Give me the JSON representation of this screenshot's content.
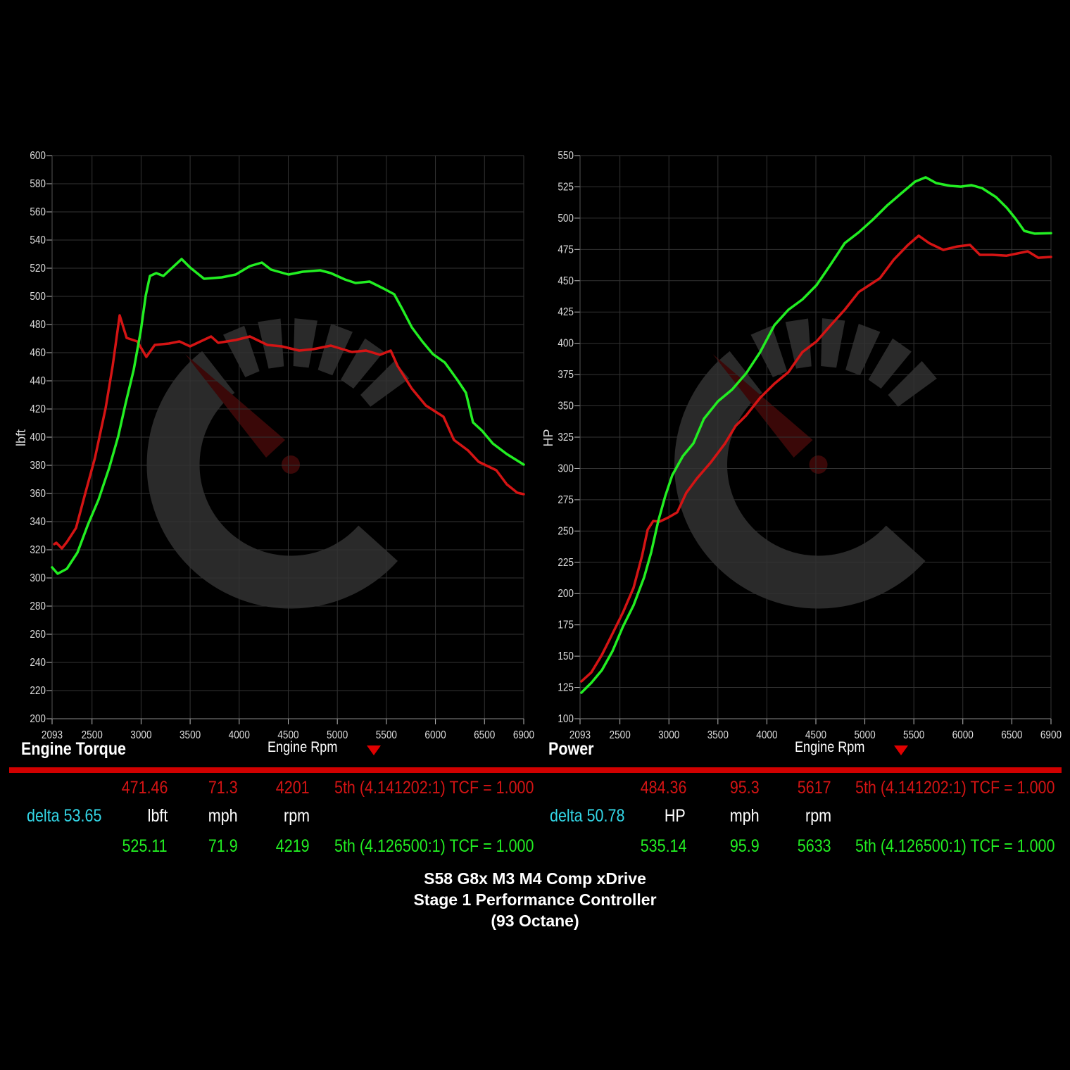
{
  "colors": {
    "baseline": "#d41414",
    "tuned": "#22ee22",
    "delta": "#33d6e6",
    "bar": "#d10000",
    "grid": "#333333",
    "watermark": "#2a2a2a"
  },
  "chart_data": [
    {
      "type": "line",
      "title": "Engine Torque",
      "xlabel": "Engine Rpm",
      "ylabel": "lbft",
      "xlim": [
        2093,
        6900
      ],
      "ylim": [
        200,
        600
      ],
      "xticks": [
        2093,
        2500,
        3000,
        3500,
        4000,
        4500,
        5000,
        5500,
        6000,
        6500,
        6900
      ],
      "yticks": [
        200,
        220,
        240,
        260,
        280,
        300,
        320,
        340,
        360,
        380,
        400,
        420,
        440,
        460,
        480,
        500,
        520,
        540,
        560,
        580,
        600
      ],
      "grid": true,
      "series": [
        {
          "color": "#d41414",
          "x": [
            2115,
            2136,
            2193,
            2244,
            2337,
            2423,
            2531,
            2638,
            2710,
            2782,
            2853,
            2961,
            3054,
            3140,
            3284,
            3391,
            3499,
            3714,
            3786,
            3965,
            4109,
            4288,
            4432,
            4611,
            4755,
            4934,
            5149,
            5293,
            5436,
            5544,
            5615,
            5759,
            5902,
            6082,
            6189,
            6333,
            6440,
            6620,
            6727,
            6835,
            6900
          ],
          "y": [
            324,
            325,
            321,
            325.5,
            335.5,
            358,
            385.5,
            420.5,
            450.5,
            486.5,
            470.5,
            468,
            457,
            465.5,
            466.5,
            468,
            464.5,
            471.5,
            467,
            469,
            471.5,
            465.5,
            464.5,
            461.5,
            462.5,
            465,
            460.5,
            461.5,
            458.5,
            461.5,
            450.5,
            434.5,
            422.5,
            414.5,
            398,
            390.5,
            382.5,
            376.5,
            366.5,
            360.5,
            359.5
          ]
        },
        {
          "color": "#22ee22",
          "x": [
            2093,
            2150,
            2244,
            2351,
            2459,
            2566,
            2674,
            2767,
            2839,
            2925,
            2997,
            3047,
            3090,
            3155,
            3227,
            3320,
            3413,
            3499,
            3642,
            3822,
            3965,
            4109,
            4231,
            4324,
            4503,
            4647,
            4826,
            4934,
            5077,
            5185,
            5329,
            5472,
            5580,
            5666,
            5759,
            5866,
            5974,
            6096,
            6225,
            6311,
            6383,
            6476,
            6584,
            6727,
            6900
          ],
          "y": [
            307.5,
            303,
            306.5,
            318,
            338,
            355.5,
            378,
            400.5,
            423,
            448,
            475.5,
            500.5,
            514.5,
            516.5,
            514.5,
            520.5,
            526.5,
            520.5,
            512.5,
            513.5,
            515.5,
            521.5,
            524,
            519,
            515.5,
            517.5,
            518.5,
            516.5,
            512,
            509.5,
            510.5,
            505.5,
            501.5,
            490.5,
            478,
            468,
            459,
            453,
            440.5,
            431.5,
            410.5,
            404.5,
            395.5,
            388,
            380.5
          ]
        }
      ]
    },
    {
      "type": "line",
      "title": "Power",
      "xlabel": "Engine Rpm",
      "ylabel": "HP",
      "xlim": [
        2093,
        6900
      ],
      "ylim": [
        100,
        550
      ],
      "xticks": [
        2093,
        2500,
        3000,
        3500,
        4000,
        4500,
        5000,
        5500,
        6000,
        6500,
        6900
      ],
      "yticks": [
        100,
        125,
        150,
        175,
        200,
        225,
        250,
        275,
        300,
        325,
        350,
        375,
        400,
        425,
        450,
        475,
        500,
        525,
        550
      ],
      "grid": true,
      "series": [
        {
          "color": "#d41414",
          "x": [
            2107,
            2208,
            2316,
            2424,
            2531,
            2639,
            2725,
            2783,
            2840,
            2905,
            2998,
            3085,
            3178,
            3286,
            3429,
            3573,
            3681,
            3789,
            3932,
            4076,
            4220,
            4363,
            4507,
            4651,
            4795,
            4938,
            5046,
            5154,
            5297,
            5441,
            5549,
            5657,
            5801,
            5944,
            6073,
            6174,
            6303,
            6447,
            6663,
            6770,
            6900
          ],
          "y": [
            129.8,
            137,
            151,
            168,
            185,
            204.6,
            230,
            251,
            258,
            257.5,
            261,
            265,
            280.6,
            292,
            305,
            320,
            334,
            342.4,
            356.5,
            367.7,
            377,
            393,
            401.5,
            414.4,
            426.8,
            441,
            446.5,
            452,
            467,
            478.6,
            486,
            480,
            474.6,
            477.4,
            478.6,
            470.7,
            470.7,
            470,
            473.5,
            468.4,
            469
          ]
        },
        {
          "color": "#22ee22",
          "x": [
            2107,
            2208,
            2316,
            2424,
            2531,
            2639,
            2747,
            2819,
            2891,
            2962,
            3034,
            3142,
            3250,
            3357,
            3501,
            3645,
            3789,
            3932,
            4076,
            4220,
            4363,
            4507,
            4651,
            4795,
            4938,
            5082,
            5226,
            5369,
            5513,
            5621,
            5729,
            5873,
            5980,
            6088,
            6196,
            6339,
            6447,
            6534,
            6627,
            6735,
            6900
          ],
          "y": [
            120.8,
            128.7,
            138.8,
            154,
            173.7,
            190.6,
            213,
            232.8,
            258,
            277.7,
            294.6,
            309.8,
            320,
            339.6,
            353.7,
            363,
            376,
            393,
            414.4,
            426.8,
            435,
            446.5,
            463,
            480,
            488.7,
            498.8,
            510,
            519.6,
            529.2,
            532.6,
            528,
            525.8,
            525.2,
            526.4,
            524,
            516.8,
            508.4,
            500,
            489.8,
            487.6,
            488
          ]
        }
      ]
    }
  ],
  "torque_table": {
    "baseline": {
      "value": "471.46",
      "mph": "71.3",
      "rpm": "4201",
      "gear": "5th (4.141202:1) TCF = 1.000"
    },
    "delta": "delta 53.65",
    "units": {
      "value": "lbft",
      "mph": "mph",
      "rpm": "rpm"
    },
    "tuned": {
      "value": "525.11",
      "mph": "71.9",
      "rpm": "4219",
      "gear": "5th (4.126500:1) TCF = 1.000"
    }
  },
  "power_table": {
    "baseline": {
      "value": "484.36",
      "mph": "95.3",
      "rpm": "5617",
      "gear": "5th (4.141202:1) TCF = 1.000"
    },
    "delta": "delta 50.78",
    "units": {
      "value": "HP",
      "mph": "mph",
      "rpm": "rpm"
    },
    "tuned": {
      "value": "535.14",
      "mph": "95.9",
      "rpm": "5633",
      "gear": "5th (4.126500:1) TCF = 1.000"
    }
  },
  "caption": [
    "S58 G8x M3 M4 Comp xDrive",
    "Stage 1 Performance Controller",
    "(93 Octane)"
  ]
}
